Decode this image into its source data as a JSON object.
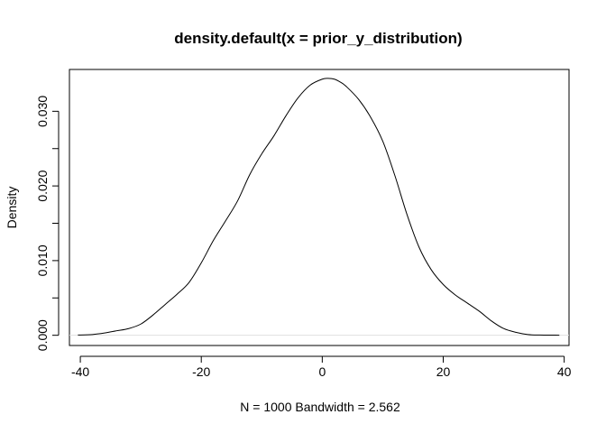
{
  "chart_data": {
    "type": "line",
    "title": "density.default(x = prior_y_distribution)",
    "xlabel": "N = 1000   Bandwidth = 2.562",
    "ylabel": "Density",
    "xlim": [
      -41.8,
      40.8
    ],
    "ylim": [
      -0.00137,
      0.0356
    ],
    "x_ticks": [
      -40,
      -20,
      0,
      20,
      40
    ],
    "x_tick_labels": [
      "-40",
      "-20",
      "0",
      "20",
      "40"
    ],
    "y_ticks": [
      0.0,
      0.01,
      0.02,
      0.03
    ],
    "y_tick_labels": [
      "0.000",
      "0.010",
      "0.020",
      "0.030"
    ],
    "grid": false,
    "zero_line": true,
    "series": [
      {
        "x": [
          -40.4,
          -38,
          -36,
          -34,
          -32,
          -30,
          -28,
          -26,
          -24,
          -22,
          -20,
          -18,
          -16,
          -14,
          -12,
          -10,
          -8,
          -6,
          -4,
          -2,
          0,
          1,
          2,
          3,
          4,
          6,
          8,
          10,
          12,
          14,
          16,
          18,
          20,
          22,
          24,
          26,
          28,
          30,
          32,
          34,
          36,
          39.2
        ],
        "y": [
          3e-05,
          0.0001,
          0.0003,
          0.0006,
          0.0009,
          0.0015,
          0.0027,
          0.0041,
          0.0055,
          0.0071,
          0.0097,
          0.0127,
          0.0153,
          0.018,
          0.0215,
          0.0243,
          0.0267,
          0.0294,
          0.0318,
          0.0335,
          0.0343,
          0.0344,
          0.0343,
          0.0339,
          0.0333,
          0.0316,
          0.0292,
          0.026,
          0.0214,
          0.0162,
          0.0118,
          0.0088,
          0.0068,
          0.0054,
          0.0043,
          0.0032,
          0.0019,
          0.0009,
          0.0004,
          0.0001,
          3e-05,
          1e-05
        ]
      }
    ]
  }
}
